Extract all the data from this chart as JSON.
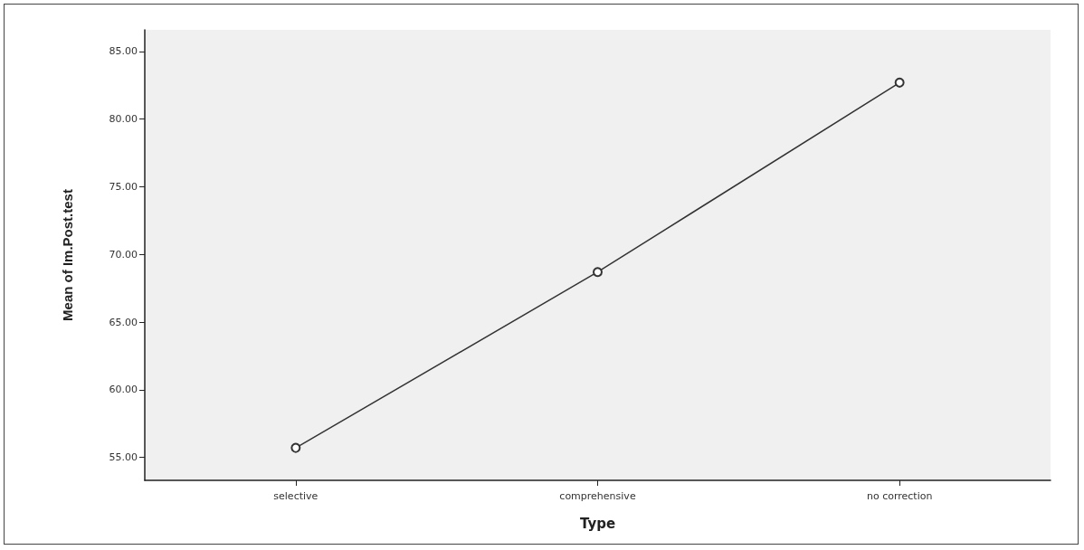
{
  "chart_data": {
    "type": "line",
    "xlabel": "Type",
    "ylabel": "Mean of Im.Post.test",
    "categories": [
      "selective",
      "comprehensive",
      "no correction"
    ],
    "series": [
      {
        "color": "#333333",
        "values": [
          55.7,
          68.7,
          82.7
        ]
      }
    ],
    "ylim": [
      53.3,
      86.6
    ],
    "yticks": [
      {
        "value": 55,
        "label": "55.00"
      },
      {
        "value": 60,
        "label": "60.00"
      },
      {
        "value": 65,
        "label": "65.00"
      },
      {
        "value": 70,
        "label": "70.00"
      },
      {
        "value": 75,
        "label": "75.00"
      },
      {
        "value": 80,
        "label": "80.00"
      },
      {
        "value": 85,
        "label": "85.00"
      }
    ],
    "marker": "circle",
    "line_style": "solid",
    "grid": false
  }
}
